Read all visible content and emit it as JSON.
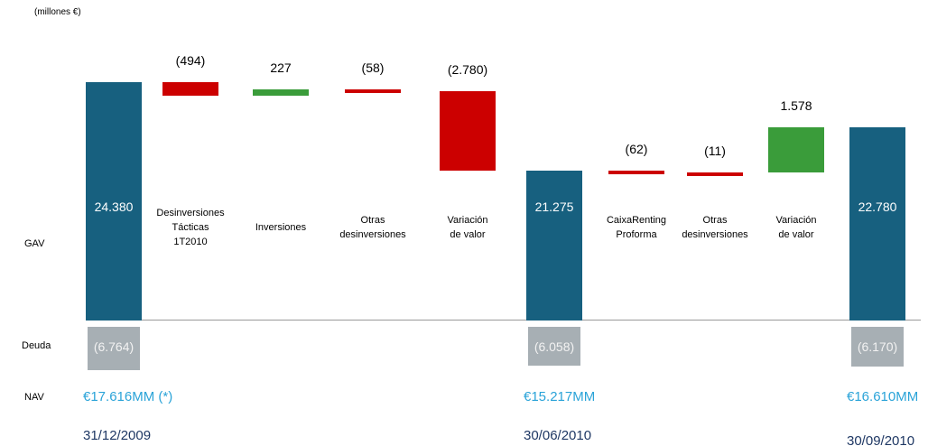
{
  "chart_data": {
    "type": "waterfall",
    "unit": "(millones €)",
    "gav_label": "GAV",
    "categories": [
      null,
      "Desinversiones\nTácticas\n1T2010",
      "Inversiones",
      "Otras\ndesinversiones",
      "Variación\nde valor",
      null,
      "CaixaRenting\nProforma",
      "Otras\ndesinversiones",
      "Variación\nde valor",
      null
    ],
    "measures": [
      "total",
      "relative",
      "relative",
      "relative",
      "relative",
      "total",
      "relative",
      "relative",
      "relative",
      "total"
    ],
    "values": [
      24380,
      -494,
      227,
      -58,
      -2780,
      21275,
      -62,
      -11,
      1578,
      22780
    ],
    "value_labels": [
      "24.380",
      "(494)",
      "227",
      "(58)",
      "(2.780)",
      "21.275",
      "(62)",
      "(11)",
      "1.578",
      "22.780"
    ],
    "colors": {
      "total": "#17607f",
      "negative": "#cc0000",
      "positive": "#3a9c3a",
      "debt": "#a7afb4"
    },
    "ylim": [
      16000,
      25000
    ],
    "debt": {
      "name": "Deuda",
      "values": [
        -6764,
        -6058,
        -6170
      ],
      "value_labels": [
        "(6.764)",
        "(6.058)",
        "(6.170)"
      ],
      "ylim": [
        -7000,
        0
      ]
    },
    "nav": {
      "name": "NAV",
      "labels": [
        "€17.616MM (*)",
        "€15.217MM",
        "€16.610MM"
      ]
    },
    "dates": [
      "31/12/2009",
      "30/06/2010",
      "30/09/2010"
    ]
  }
}
